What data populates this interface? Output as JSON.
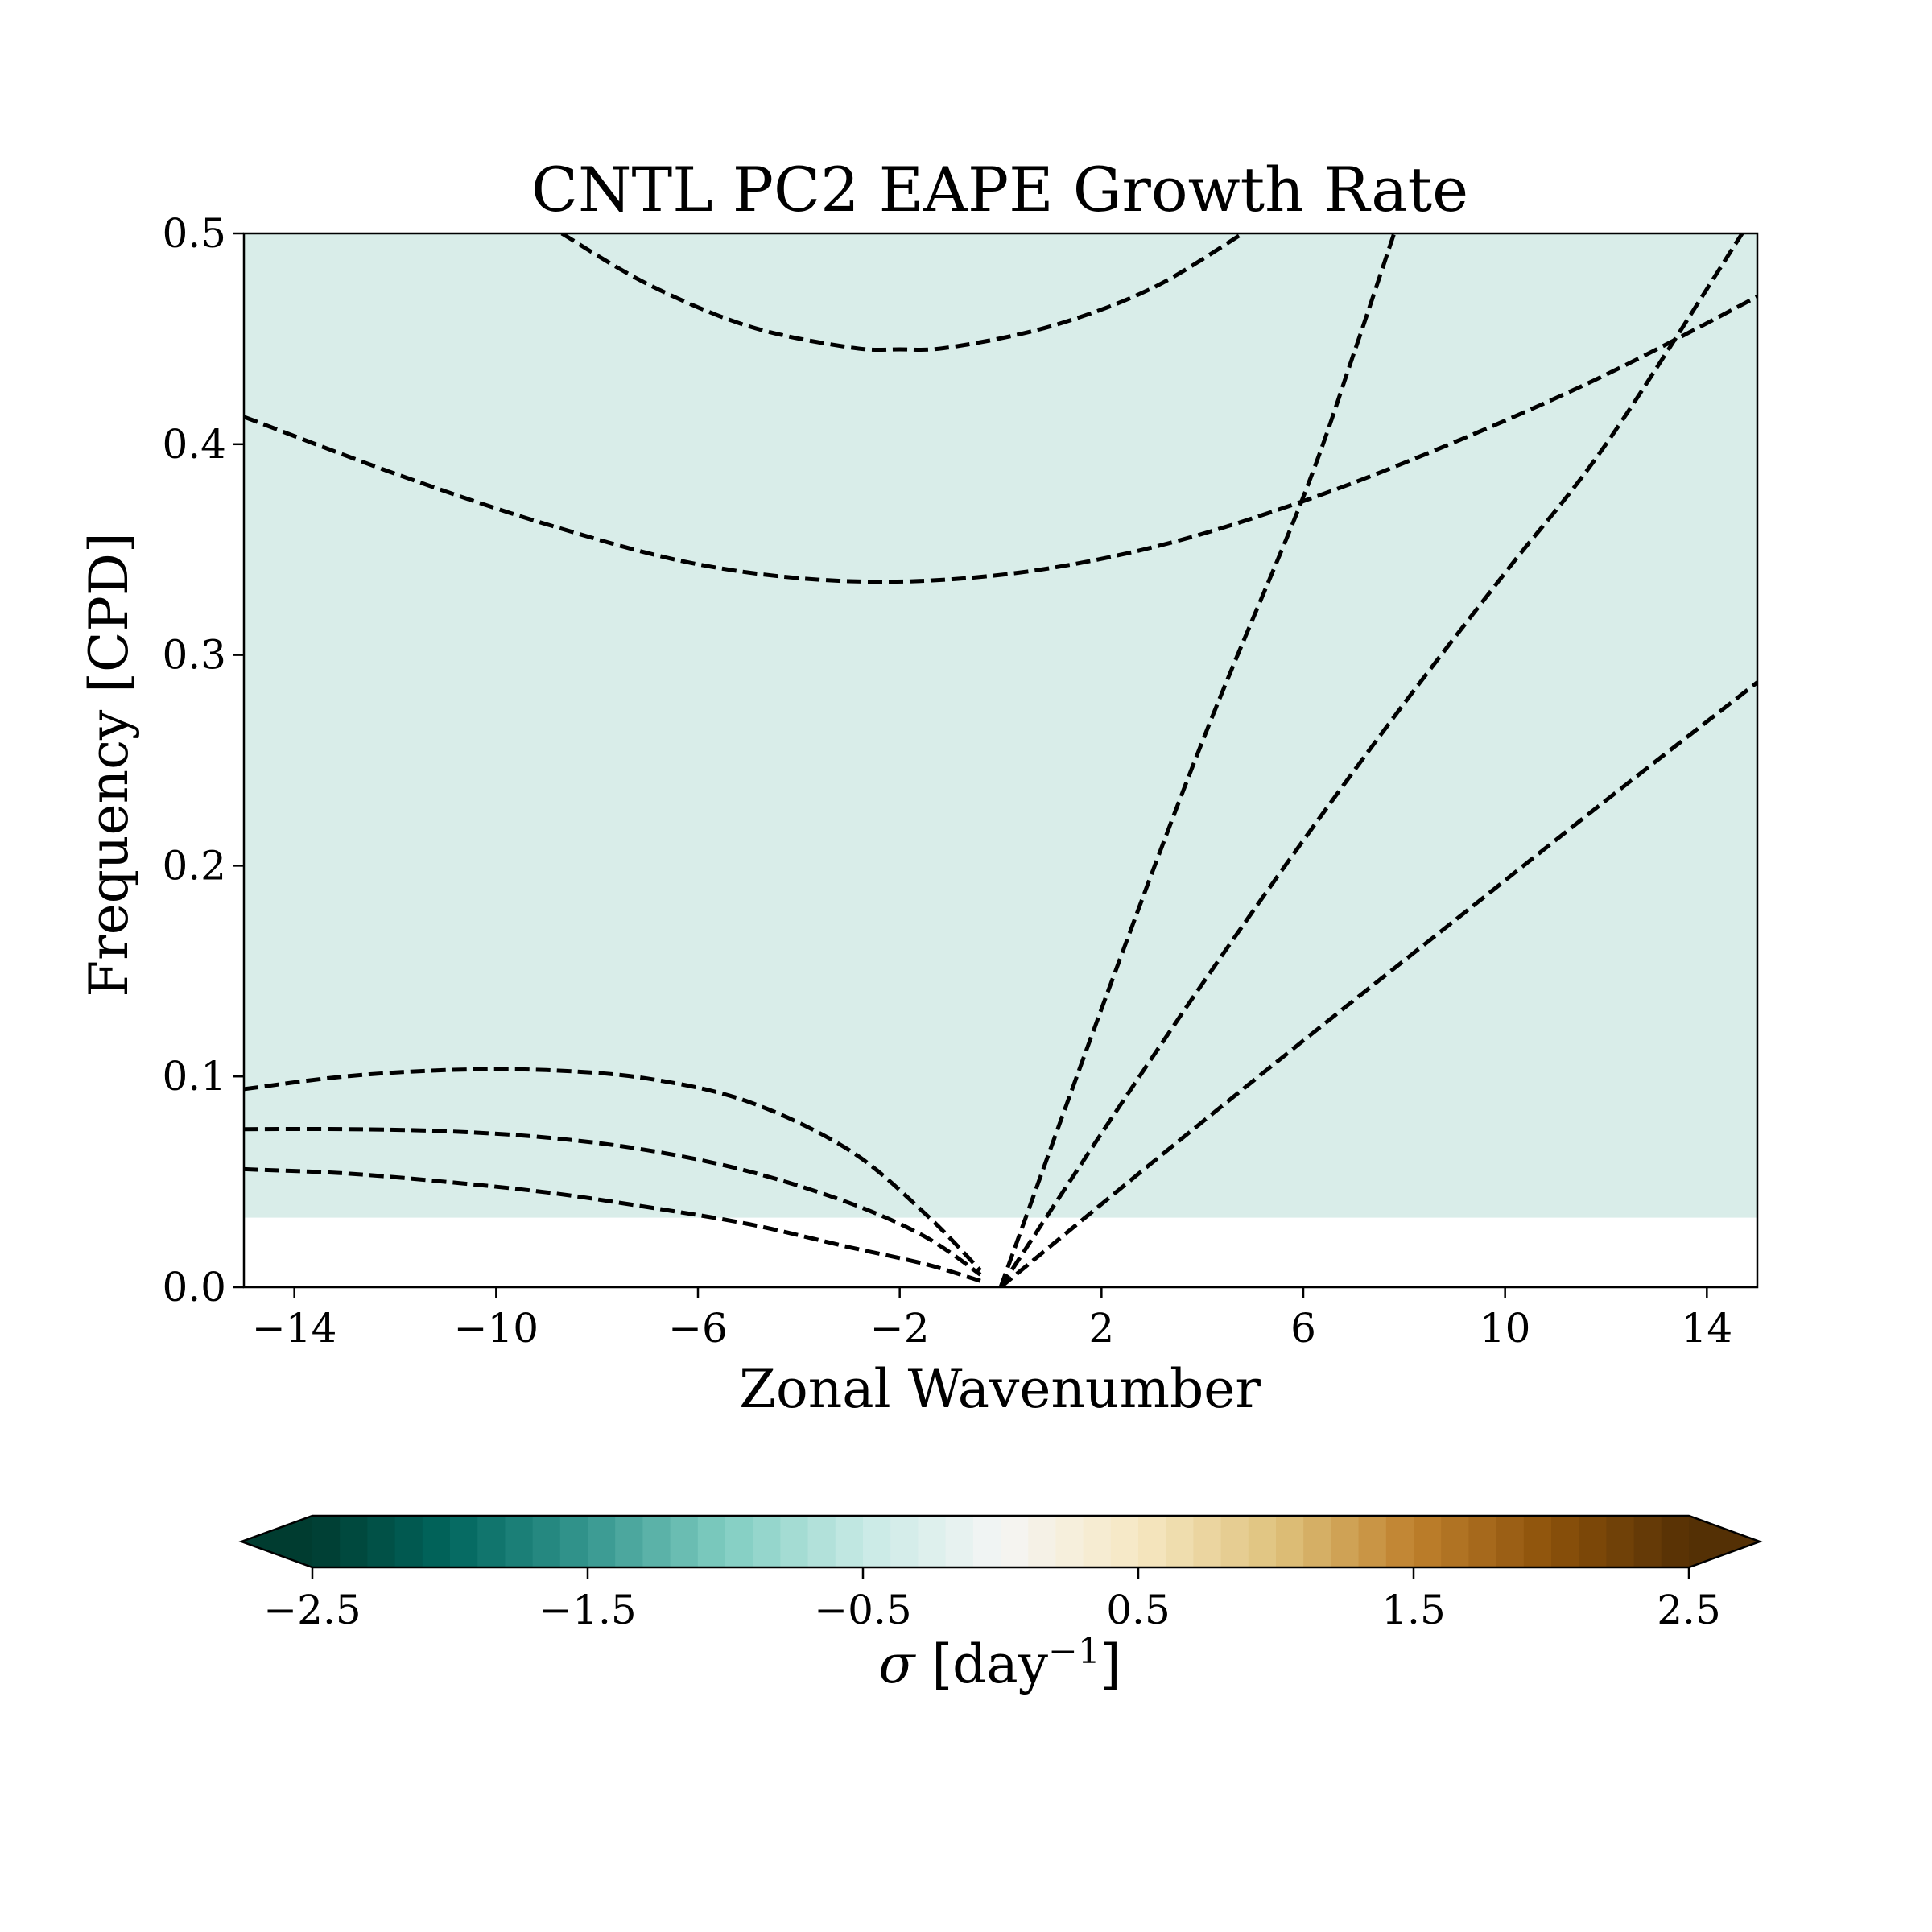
{
  "chart_data": {
    "type": "heatmap",
    "title": "CNTL PC2 EAPE Growth Rate",
    "xlabel": "Zonal Wavenumber",
    "ylabel": "Frequency [CPD]",
    "xlim": [
      -15,
      15
    ],
    "ylim": [
      0,
      0.5
    ],
    "xticks": [
      -14,
      -10,
      -6,
      -2,
      2,
      6,
      10,
      14
    ],
    "xtick_labels": [
      "−14",
      "−10",
      "−6",
      "−2",
      "2",
      "6",
      "10",
      "14"
    ],
    "yticks": [
      0.0,
      0.1,
      0.2,
      0.3,
      0.4,
      0.5
    ],
    "ytick_labels": [
      "0.0",
      "0.1",
      "0.2",
      "0.3",
      "0.4",
      "0.5"
    ],
    "field": {
      "description_value": "uniform field",
      "value": -0.2,
      "y_min": 0.033,
      "y_max": 0.5,
      "color": "#d9ede9"
    },
    "series": [
      {
        "style": "dashed",
        "x": [
          -8.7,
          -7,
          -5,
          -3,
          -2,
          -1,
          1,
          3,
          4.8
        ],
        "y": [
          0.5,
          0.476,
          0.456,
          0.446,
          0.445,
          0.446,
          0.456,
          0.474,
          0.5
        ]
      },
      {
        "style": "dashed",
        "x": [
          -15,
          -12,
          -9,
          -6,
          -3,
          0,
          3,
          6,
          9,
          12,
          15
        ],
        "y": [
          0.413,
          0.386,
          0.362,
          0.343,
          0.335,
          0.338,
          0.351,
          0.373,
          0.401,
          0.433,
          0.47
        ]
      },
      {
        "style": "dashed",
        "x": [
          -15,
          -13,
          -11,
          -9,
          -7,
          -5,
          -3,
          -1.5,
          -0.4
        ],
        "y": [
          0.094,
          0.1,
          0.103,
          0.103,
          0.099,
          0.088,
          0.065,
          0.035,
          0.008
        ]
      },
      {
        "style": "dashed",
        "x": [
          -15,
          -13,
          -11,
          -9,
          -7,
          -5,
          -3,
          -1.5,
          -0.4
        ],
        "y": [
          0.075,
          0.075,
          0.074,
          0.071,
          0.065,
          0.055,
          0.04,
          0.024,
          0.006
        ]
      },
      {
        "style": "dashed",
        "x": [
          -15,
          -13,
          -11,
          -9,
          -7,
          -5,
          -3,
          -1.5,
          -0.4
        ],
        "y": [
          0.056,
          0.054,
          0.05,
          0.045,
          0.038,
          0.03,
          0.019,
          0.011,
          0.003
        ]
      },
      {
        "style": "dashed",
        "x": [
          0,
          2,
          4,
          6,
          7,
          7.8
        ],
        "y": [
          0.0,
          0.132,
          0.259,
          0.375,
          0.443,
          0.5
        ]
      },
      {
        "style": "dashed",
        "x": [
          0,
          2,
          4,
          6,
          8,
          10,
          12,
          14.7
        ],
        "y": [
          0.0,
          0.073,
          0.144,
          0.212,
          0.277,
          0.339,
          0.4,
          0.5
        ]
      },
      {
        "style": "dashed",
        "x": [
          0,
          3,
          6,
          9,
          12,
          15
        ],
        "y": [
          0.0,
          0.059,
          0.117,
          0.174,
          0.231,
          0.287
        ]
      }
    ],
    "colorbar": {
      "label_symbol": "σ",
      "label_unit": "day",
      "label_exponent": "−1",
      "min": -2.5,
      "max": 2.5,
      "levels": 50,
      "extend": "both",
      "ticks": [
        -2.5,
        -1.5,
        -0.5,
        0.5,
        1.5,
        2.5
      ],
      "tick_labels": [
        "−2.5",
        "−1.5",
        "−0.5",
        "0.5",
        "1.5",
        "2.5"
      ],
      "colormap": "BrBG_r",
      "colormap_stops": [
        "#003c30",
        "#01665e",
        "#35978f",
        "#80cdc1",
        "#c7eae5",
        "#f5f5f5",
        "#f6e8c3",
        "#dfc27d",
        "#bf812d",
        "#8c510a",
        "#543005"
      ]
    }
  }
}
